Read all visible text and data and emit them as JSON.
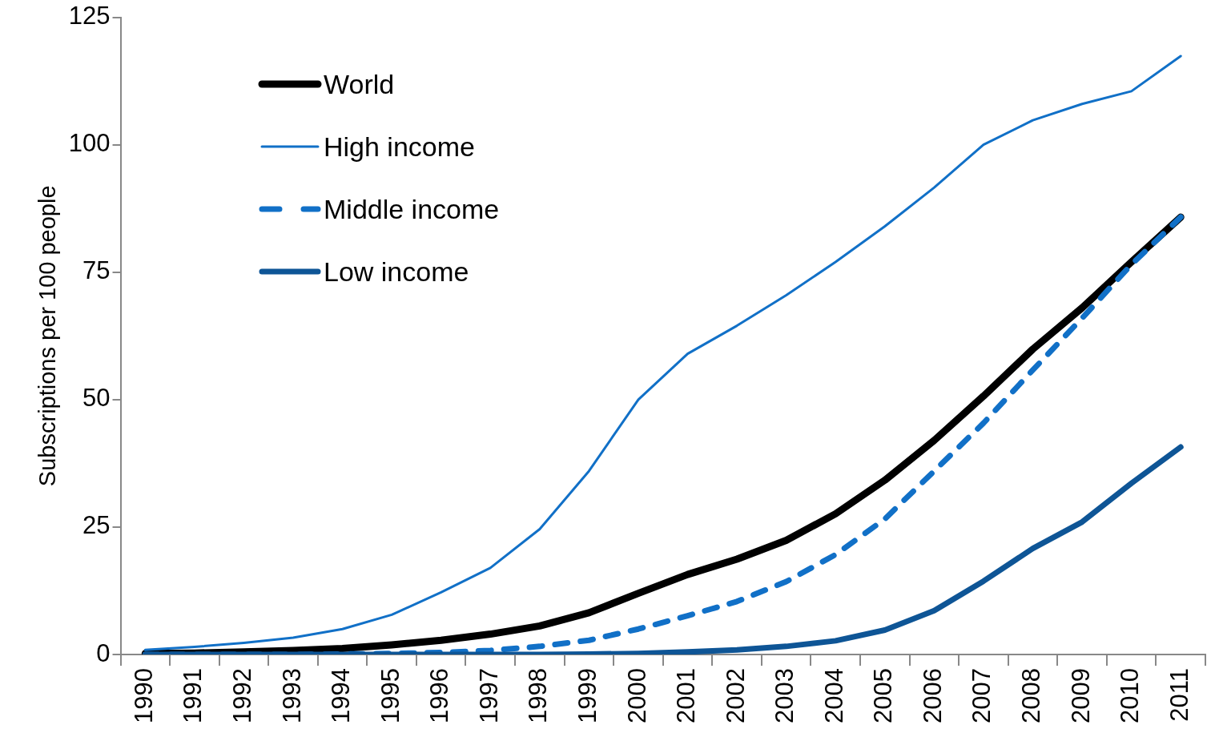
{
  "chart_data": {
    "type": "line",
    "ylabel": "Subscriptions per 100 people",
    "categories": [
      "1990",
      "1991",
      "1992",
      "1993",
      "1994",
      "1995",
      "1996",
      "1997",
      "1998",
      "1999",
      "2000",
      "2001",
      "2002",
      "2003",
      "2004",
      "2005",
      "2006",
      "2007",
      "2008",
      "2009",
      "2010",
      "2011"
    ],
    "ylim": [
      0,
      125
    ],
    "yticks": [
      0,
      25,
      50,
      75,
      100,
      125
    ],
    "grid": false,
    "legend": "top left",
    "marker": "none",
    "series": [
      {
        "name": "World",
        "color": "#000000",
        "line_style": "solid",
        "values": [
          0.2,
          0.3,
          0.5,
          0.8,
          1.2,
          1.9,
          2.8,
          4,
          5.6,
          8.2,
          12,
          15.7,
          18.7,
          22.4,
          27.6,
          34.2,
          42,
          50.7,
          59.9,
          68,
          77,
          85.8
        ]
      },
      {
        "name": "High income",
        "color": "#1170c7",
        "line_style": "solid",
        "values": [
          0.9,
          1.5,
          2.3,
          3.3,
          5,
          7.8,
          12.2,
          17,
          24.6,
          36,
          50,
          59,
          64.5,
          70.5,
          77,
          84,
          91.6,
          100,
          104.8,
          108,
          110.5,
          117.4
        ]
      },
      {
        "name": "Middle income",
        "color": "#1170c7",
        "line_style": "dashed",
        "values": [
          0,
          0,
          0,
          0,
          0.1,
          0.2,
          0.4,
          0.8,
          1.6,
          2.8,
          5,
          7.6,
          10.4,
          14.3,
          19.6,
          26.6,
          36,
          45.4,
          55.8,
          66,
          76.5,
          85.8
        ]
      },
      {
        "name": "Low income",
        "color": "#0e5596",
        "line_style": "solid",
        "values": [
          0,
          0,
          0,
          0,
          0,
          0,
          0,
          0,
          0,
          0.1,
          0.2,
          0.5,
          0.9,
          1.6,
          2.7,
          4.8,
          8.6,
          14.4,
          20.8,
          26,
          33.6,
          40.7
        ]
      }
    ]
  }
}
